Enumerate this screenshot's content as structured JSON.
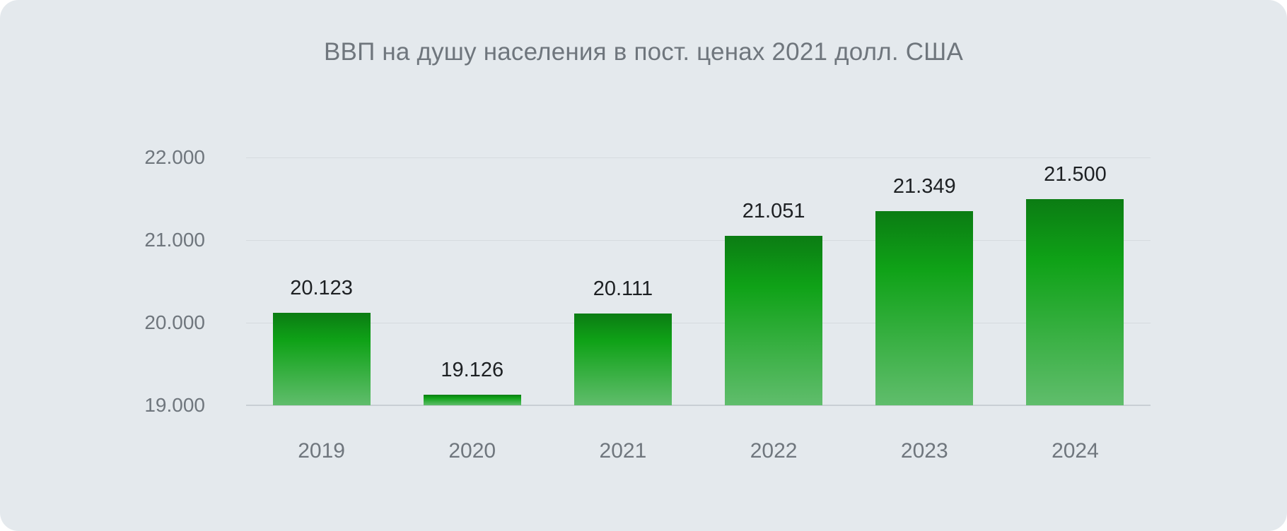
{
  "title": "ВВП на душу населения в пост. ценах 2021 долл. США",
  "chart_data": {
    "type": "bar",
    "title": "ВВП на душу населения в пост. ценах 2021 долл. США",
    "categories": [
      "2019",
      "2020",
      "2021",
      "2022",
      "2023",
      "2024"
    ],
    "values": [
      20123,
      19126,
      20111,
      21051,
      21349,
      21500
    ],
    "value_labels": [
      "20.123",
      "19.126",
      "20.111",
      "21.051",
      "21.349",
      "21.500"
    ],
    "xlabel": "",
    "ylabel": "",
    "ylim": [
      19000,
      22000
    ],
    "yticks": [
      22000,
      21000,
      20000,
      19000
    ],
    "ytick_labels": [
      "22.000",
      "21.000",
      "20.000",
      "19.000"
    ],
    "grid": true,
    "legend": false,
    "colors": {
      "card_background": "#e4e9ed",
      "title": "#6f767d",
      "axis_label": "#6f767d",
      "value_label": "#1d2023",
      "gridline": "#d5dade",
      "baseline": "#c9cfd4",
      "bar_gradient_top": "#0b7c13",
      "bar_gradient_mid": "#0fa217",
      "bar_gradient_bottom": "#60bd6c"
    }
  }
}
